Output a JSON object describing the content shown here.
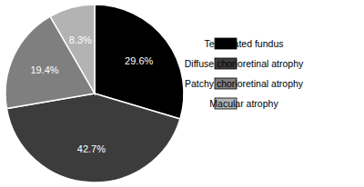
{
  "chart_data": {
    "type": "pie",
    "categories": [
      "Tessellated fundus",
      "Diffuse chorioretinal atrophy",
      "Patchy chorioretinal atrophy",
      "Macular atrophy"
    ],
    "values": [
      29.6,
      42.7,
      19.4,
      8.3
    ],
    "value_labels": [
      "29.6%",
      "42.7%",
      "19.4%",
      "8.3%"
    ],
    "colors": [
      "#000000",
      "#3c3c3c",
      "#7f7f7f",
      "#b3b3b3"
    ],
    "data_labels": true,
    "legend": "right"
  }
}
